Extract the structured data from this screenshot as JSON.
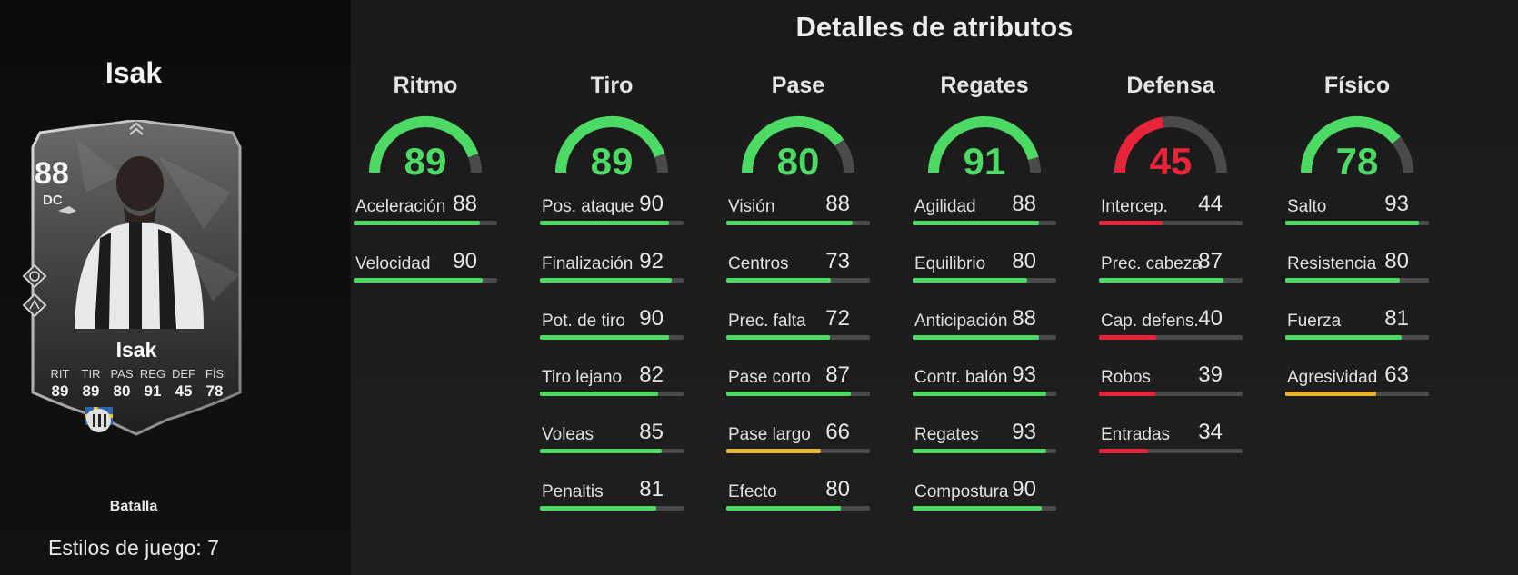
{
  "player": {
    "name": "Isak",
    "rating": "88",
    "position": "DC",
    "version": "Batalla",
    "playstyles_label": "Estilos de juego: 7",
    "card_stats": [
      {
        "label": "RIT",
        "value": "89"
      },
      {
        "label": "TIR",
        "value": "89"
      },
      {
        "label": "PAS",
        "value": "80"
      },
      {
        "label": "REG",
        "value": "91"
      },
      {
        "label": "DEF",
        "value": "45"
      },
      {
        "label": "FÍS",
        "value": "78"
      }
    ],
    "badges": [
      "sweden-flag-icon",
      "premier-league-icon",
      "newcastle-crest-icon"
    ]
  },
  "colors": {
    "green": "#4cd964",
    "red": "#e8243b",
    "yellow": "#e7b530",
    "track": "#4a4a4a"
  },
  "details": {
    "title": "Detalles de atributos",
    "categories": [
      {
        "name": "Ritmo",
        "value": 89,
        "attributes": [
          {
            "name": "Aceleración",
            "value": 88
          },
          {
            "name": "Velocidad",
            "value": 90
          }
        ]
      },
      {
        "name": "Tiro",
        "value": 89,
        "attributes": [
          {
            "name": "Pos. ataque",
            "value": 90
          },
          {
            "name": "Finalización",
            "value": 92
          },
          {
            "name": "Pot. de tiro",
            "value": 90
          },
          {
            "name": "Tiro lejano",
            "value": 82
          },
          {
            "name": "Voleas",
            "value": 85
          },
          {
            "name": "Penaltis",
            "value": 81
          }
        ]
      },
      {
        "name": "Pase",
        "value": 80,
        "attributes": [
          {
            "name": "Visión",
            "value": 88
          },
          {
            "name": "Centros",
            "value": 73
          },
          {
            "name": "Prec. falta",
            "value": 72
          },
          {
            "name": "Pase corto",
            "value": 87
          },
          {
            "name": "Pase largo",
            "value": 66
          },
          {
            "name": "Efecto",
            "value": 80
          }
        ]
      },
      {
        "name": "Regates",
        "value": 91,
        "attributes": [
          {
            "name": "Agilidad",
            "value": 88
          },
          {
            "name": "Equilibrio",
            "value": 80
          },
          {
            "name": "Anticipación",
            "value": 88
          },
          {
            "name": "Contr. balón",
            "value": 93
          },
          {
            "name": "Regates",
            "value": 93
          },
          {
            "name": "Compostura",
            "value": 90
          }
        ]
      },
      {
        "name": "Defensa",
        "value": 45,
        "attributes": [
          {
            "name": "Intercep.",
            "value": 44
          },
          {
            "name": "Prec. cabeza",
            "value": 87
          },
          {
            "name": "Cap. defens.",
            "value": 40
          },
          {
            "name": "Robos",
            "value": 39
          },
          {
            "name": "Entradas",
            "value": 34
          }
        ]
      },
      {
        "name": "Físico",
        "value": 78,
        "attributes": [
          {
            "name": "Salto",
            "value": 93
          },
          {
            "name": "Resistencia",
            "value": 80
          },
          {
            "name": "Fuerza",
            "value": 81
          },
          {
            "name": "Agresividad",
            "value": 63
          }
        ]
      }
    ]
  }
}
